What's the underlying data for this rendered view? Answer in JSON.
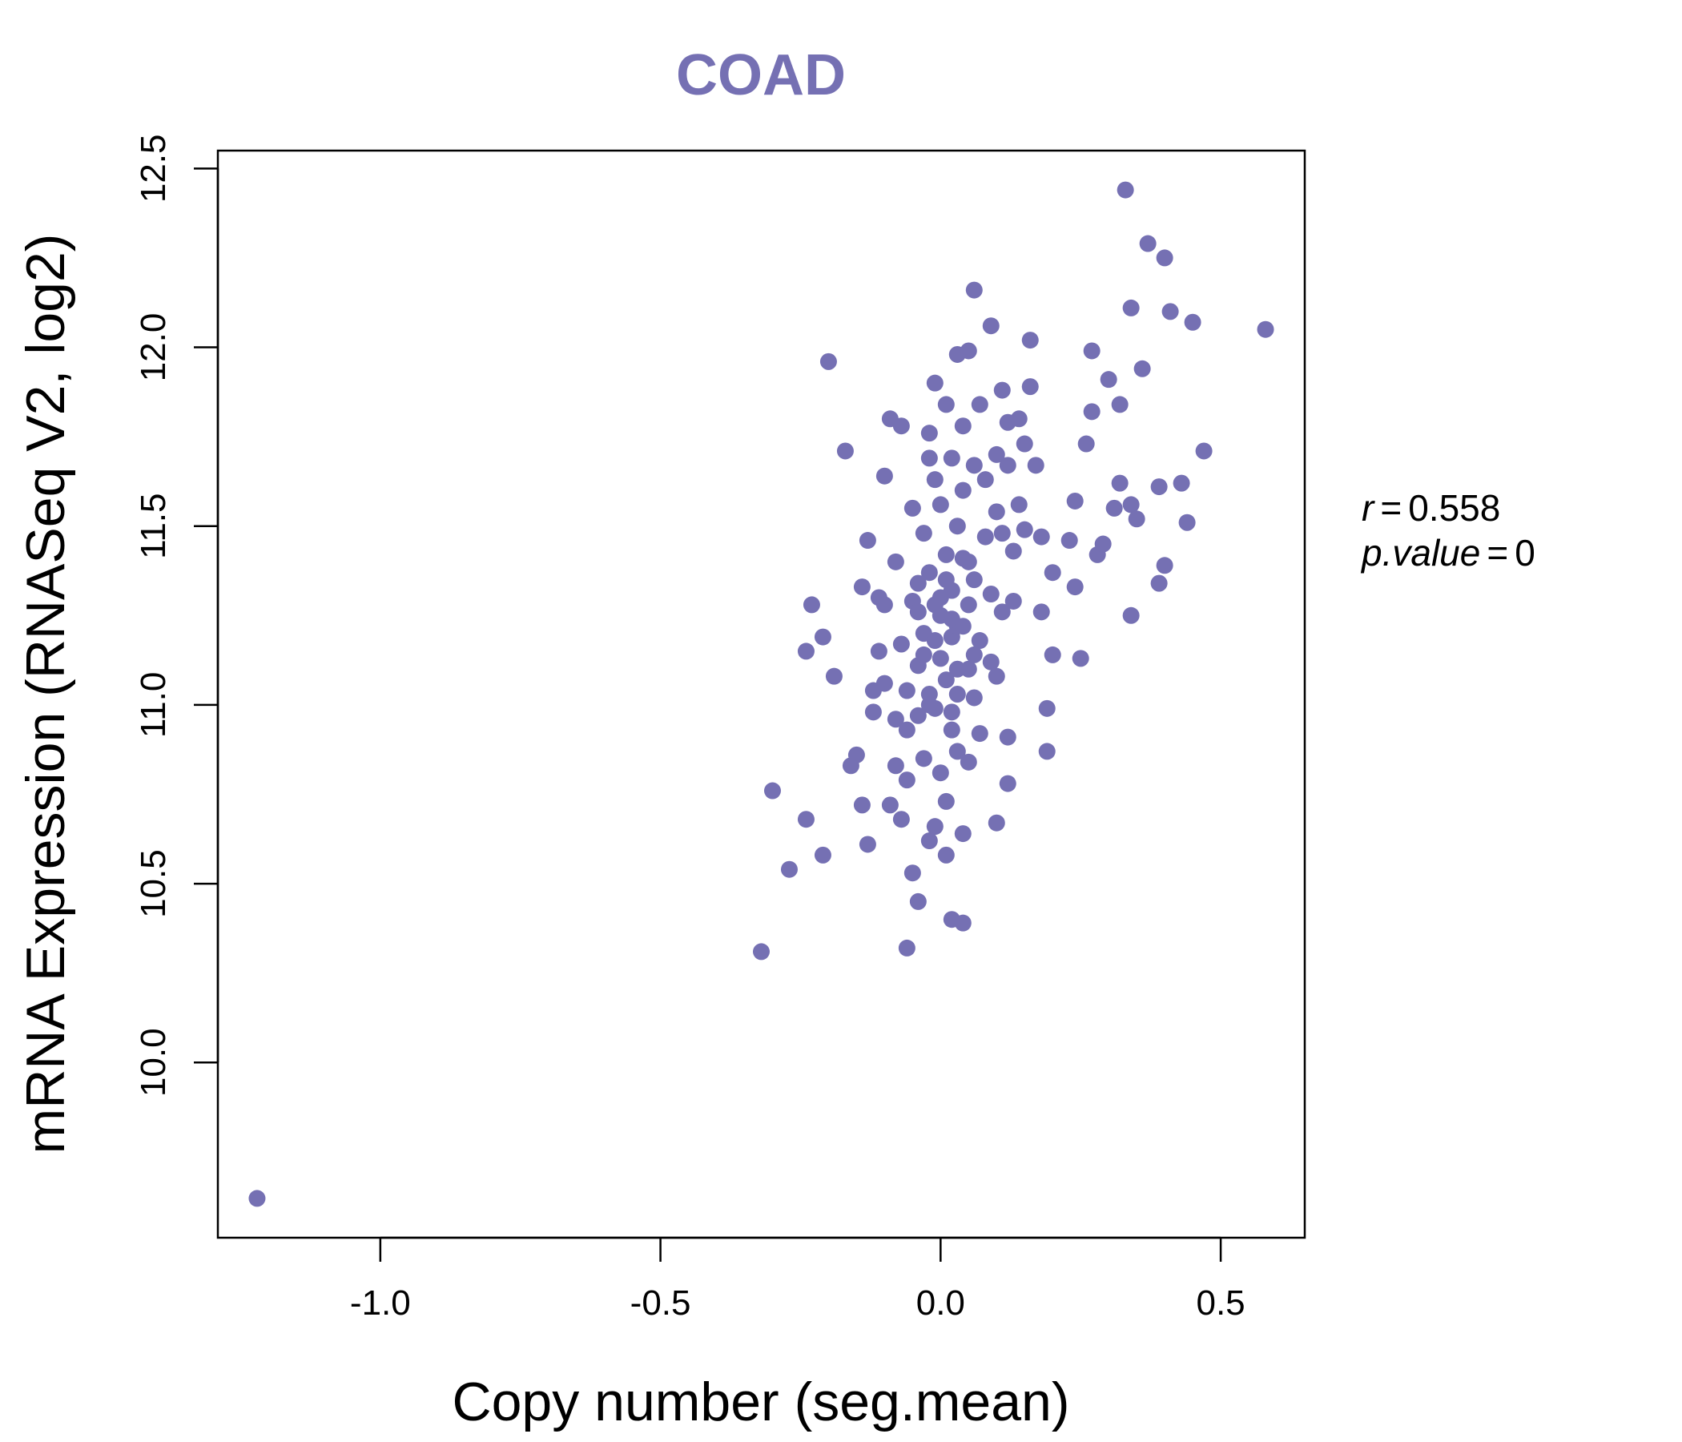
{
  "chart_data": {
    "type": "scatter",
    "title": "COAD",
    "xlabel": "Copy number (seg.mean)",
    "ylabel": "mRNA Expression (RNASeq V2, log2)",
    "xlim": [
      -1.29,
      0.65
    ],
    "ylim": [
      9.51,
      12.55
    ],
    "x_ticks": [
      -1.0,
      -0.5,
      0.0,
      0.5
    ],
    "x_tick_labels": [
      "-1.0",
      "-0.5",
      "0.0",
      "0.5"
    ],
    "y_ticks": [
      10.0,
      10.5,
      11.0,
      11.5,
      12.0,
      12.5
    ],
    "y_tick_labels": [
      "10.0",
      "10.5",
      "11.0",
      "11.5",
      "12.0",
      "12.5"
    ],
    "point_color": "#7570b3",
    "title_color": "#7570b3",
    "annotation": {
      "r_label": "r",
      "r_value": "0.558",
      "p_label": "p.value",
      "p_value": "0",
      "equals": "="
    },
    "points": [
      [
        -1.22,
        9.62
      ],
      [
        -0.32,
        10.31
      ],
      [
        -0.3,
        10.76
      ],
      [
        -0.27,
        10.54
      ],
      [
        -0.24,
        10.68
      ],
      [
        -0.24,
        11.15
      ],
      [
        -0.23,
        11.28
      ],
      [
        -0.21,
        11.19
      ],
      [
        -0.21,
        10.58
      ],
      [
        -0.2,
        11.96
      ],
      [
        -0.19,
        11.08
      ],
      [
        -0.17,
        11.71
      ],
      [
        -0.16,
        10.83
      ],
      [
        -0.15,
        10.86
      ],
      [
        -0.14,
        11.33
      ],
      [
        -0.14,
        10.72
      ],
      [
        -0.13,
        10.61
      ],
      [
        -0.13,
        11.46
      ],
      [
        -0.12,
        10.98
      ],
      [
        -0.12,
        11.04
      ],
      [
        -0.11,
        11.3
      ],
      [
        -0.11,
        11.15
      ],
      [
        -0.1,
        11.06
      ],
      [
        -0.1,
        11.28
      ],
      [
        -0.1,
        11.64
      ],
      [
        -0.09,
        11.8
      ],
      [
        -0.09,
        10.72
      ],
      [
        -0.08,
        10.83
      ],
      [
        -0.08,
        10.96
      ],
      [
        -0.08,
        11.4
      ],
      [
        -0.07,
        10.68
      ],
      [
        -0.07,
        11.78
      ],
      [
        -0.07,
        11.17
      ],
      [
        -0.06,
        11.04
      ],
      [
        -0.06,
        10.93
      ],
      [
        -0.06,
        10.79
      ],
      [
        -0.06,
        10.32
      ],
      [
        -0.05,
        11.55
      ],
      [
        -0.05,
        10.53
      ],
      [
        -0.05,
        11.29
      ],
      [
        -0.04,
        11.34
      ],
      [
        -0.04,
        10.97
      ],
      [
        -0.04,
        11.11
      ],
      [
        -0.04,
        10.45
      ],
      [
        -0.03,
        11.48
      ],
      [
        -0.03,
        11.2
      ],
      [
        -0.03,
        10.85
      ],
      [
        -0.02,
        11.76
      ],
      [
        -0.02,
        11.69
      ],
      [
        -0.02,
        10.62
      ],
      [
        -0.02,
        11.03
      ],
      [
        -0.02,
        11.37
      ],
      [
        -0.01,
        11.9
      ],
      [
        -0.01,
        11.63
      ],
      [
        -0.01,
        11.28
      ],
      [
        -0.01,
        10.99
      ],
      [
        -0.01,
        10.66
      ],
      [
        0.0,
        11.25
      ],
      [
        0.0,
        11.56
      ],
      [
        0.0,
        10.81
      ],
      [
        0.0,
        11.13
      ],
      [
        0.01,
        11.84
      ],
      [
        0.01,
        11.42
      ],
      [
        0.01,
        11.07
      ],
      [
        0.01,
        10.73
      ],
      [
        0.01,
        10.58
      ],
      [
        0.02,
        11.69
      ],
      [
        0.02,
        11.32
      ],
      [
        0.02,
        11.19
      ],
      [
        0.02,
        10.93
      ],
      [
        0.02,
        10.4
      ],
      [
        0.03,
        11.98
      ],
      [
        0.03,
        11.5
      ],
      [
        0.03,
        11.22
      ],
      [
        0.03,
        11.03
      ],
      [
        0.03,
        10.87
      ],
      [
        0.04,
        11.78
      ],
      [
        0.04,
        11.6
      ],
      [
        0.04,
        11.41
      ],
      [
        0.04,
        10.64
      ],
      [
        0.04,
        10.39
      ],
      [
        0.05,
        11.99
      ],
      [
        0.05,
        11.28
      ],
      [
        0.05,
        11.1
      ],
      [
        0.05,
        10.84
      ],
      [
        0.06,
        12.16
      ],
      [
        0.06,
        11.67
      ],
      [
        0.06,
        11.35
      ],
      [
        0.06,
        11.02
      ],
      [
        0.07,
        11.84
      ],
      [
        0.07,
        11.18
      ],
      [
        0.07,
        10.92
      ],
      [
        0.08,
        11.63
      ],
      [
        0.08,
        11.47
      ],
      [
        0.09,
        12.06
      ],
      [
        0.09,
        11.31
      ],
      [
        0.09,
        11.12
      ],
      [
        0.1,
        11.7
      ],
      [
        0.1,
        11.54
      ],
      [
        0.1,
        11.08
      ],
      [
        0.1,
        10.67
      ],
      [
        0.11,
        11.88
      ],
      [
        0.11,
        11.48
      ],
      [
        0.11,
        11.26
      ],
      [
        0.12,
        11.79
      ],
      [
        0.12,
        11.67
      ],
      [
        0.12,
        10.91
      ],
      [
        0.12,
        10.78
      ],
      [
        0.13,
        11.43
      ],
      [
        0.13,
        11.29
      ],
      [
        0.14,
        11.8
      ],
      [
        0.14,
        11.56
      ],
      [
        0.15,
        11.73
      ],
      [
        0.15,
        11.49
      ],
      [
        0.16,
        12.02
      ],
      [
        0.16,
        11.89
      ],
      [
        0.17,
        11.67
      ],
      [
        0.18,
        11.47
      ],
      [
        0.18,
        11.26
      ],
      [
        0.19,
        10.99
      ],
      [
        0.19,
        10.87
      ],
      [
        0.2,
        11.37
      ],
      [
        0.2,
        11.14
      ],
      [
        0.23,
        11.46
      ],
      [
        0.24,
        11.57
      ],
      [
        0.24,
        11.33
      ],
      [
        0.25,
        11.13
      ],
      [
        0.26,
        11.73
      ],
      [
        0.27,
        11.99
      ],
      [
        0.27,
        11.82
      ],
      [
        0.28,
        11.42
      ],
      [
        0.29,
        11.45
      ],
      [
        0.3,
        11.91
      ],
      [
        0.31,
        11.55
      ],
      [
        0.32,
        11.62
      ],
      [
        0.32,
        11.84
      ],
      [
        0.33,
        12.44
      ],
      [
        0.34,
        12.11
      ],
      [
        0.34,
        11.56
      ],
      [
        0.34,
        11.25
      ],
      [
        0.35,
        11.52
      ],
      [
        0.36,
        11.94
      ],
      [
        0.37,
        12.29
      ],
      [
        0.39,
        11.61
      ],
      [
        0.39,
        11.34
      ],
      [
        0.4,
        12.25
      ],
      [
        0.4,
        11.39
      ],
      [
        0.41,
        12.1
      ],
      [
        0.43,
        11.62
      ],
      [
        0.44,
        11.51
      ],
      [
        0.45,
        12.07
      ],
      [
        0.47,
        11.71
      ],
      [
        0.58,
        12.05
      ],
      [
        0.02,
        11.24
      ],
      [
        -0.01,
        11.18
      ],
      [
        0.0,
        11.3
      ],
      [
        0.03,
        11.1
      ],
      [
        -0.03,
        11.14
      ],
      [
        0.05,
        11.4
      ],
      [
        -0.02,
        11.0
      ],
      [
        0.01,
        11.35
      ],
      [
        0.04,
        11.22
      ],
      [
        -0.04,
        11.26
      ],
      [
        0.02,
        10.98
      ],
      [
        0.06,
        11.14
      ]
    ]
  }
}
